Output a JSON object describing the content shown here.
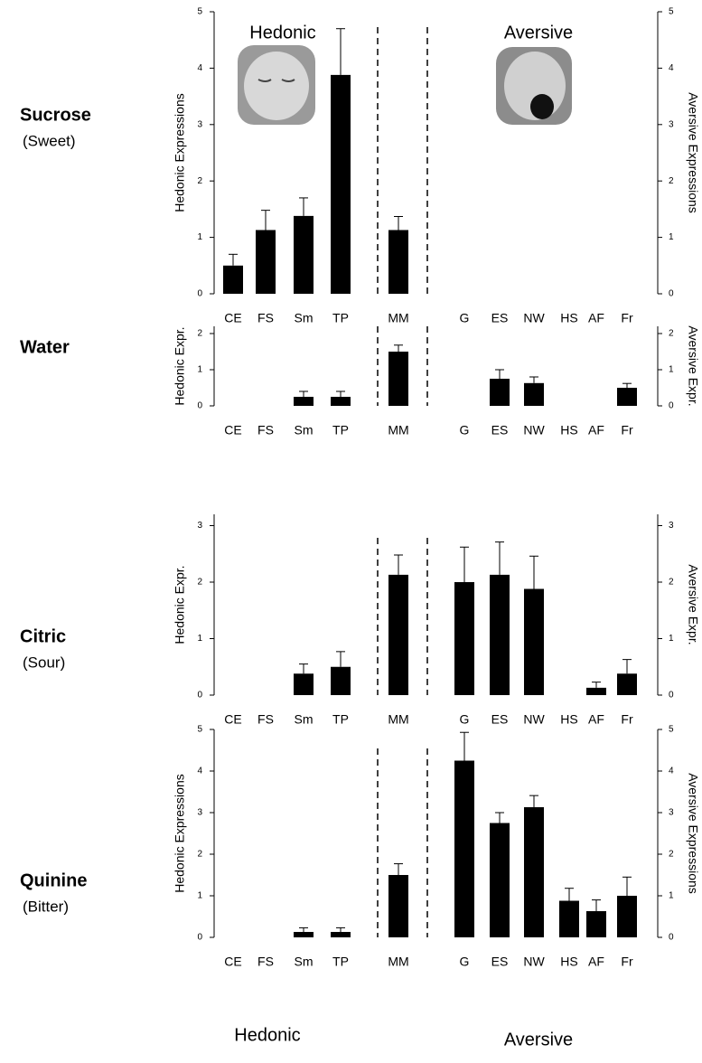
{
  "chart_data": [
    {
      "type": "bar",
      "title": "Sucrose",
      "subtitle": "(Sweet)",
      "ylabel": "Hedonic Expressions",
      "y2label": "Aversive Expressions",
      "annotations": [
        "Hedonic",
        "Aversive"
      ],
      "categories": [
        "CE",
        "FS",
        "Sm",
        "TP",
        "MM",
        "G",
        "ES",
        "NW",
        "HS",
        "AF",
        "Fr"
      ],
      "values": [
        0.5,
        1.13,
        1.38,
        3.88,
        1.13,
        0,
        0,
        0,
        0,
        0,
        0
      ],
      "errors": [
        0.2,
        0.35,
        0.32,
        0.82,
        0.24,
        null,
        null,
        null,
        null,
        null,
        null
      ],
      "color": "#000000",
      "ylim": [
        0,
        5
      ],
      "yticks": [
        0,
        1,
        2,
        3,
        4,
        5
      ],
      "y2lim": [
        0,
        5
      ],
      "y2ticks": [
        0,
        1,
        2,
        3,
        4,
        5
      ]
    },
    {
      "type": "bar",
      "title": "Water",
      "ylabel": "Hedonic Expr.",
      "y2label": "Aversive Expr.",
      "categories": [
        "CE",
        "FS",
        "Sm",
        "TP",
        "MM",
        "G",
        "ES",
        "NW",
        "HS",
        "AF",
        "Fr"
      ],
      "values": [
        0,
        0,
        0.25,
        0.25,
        1.5,
        0,
        0.75,
        0.63,
        0,
        0,
        0.5
      ],
      "errors": [
        null,
        null,
        0.15,
        0.15,
        0.18,
        null,
        0.25,
        0.17,
        null,
        null,
        0.12
      ],
      "color": "#000000",
      "ylim": [
        0,
        2.2
      ],
      "yticks": [
        0,
        1,
        2
      ],
      "y2lim": [
        0,
        2.2
      ],
      "y2ticks": [
        0,
        1,
        2
      ]
    },
    {
      "type": "bar",
      "title": "Citric",
      "subtitle": "(Sour)",
      "ylabel": "Hedonic Expr.",
      "y2label": "Aversive Expr.",
      "categories": [
        "CE",
        "FS",
        "Sm",
        "TP",
        "MM",
        "G",
        "ES",
        "NW",
        "HS",
        "AF",
        "Fr"
      ],
      "values": [
        0,
        0,
        0.38,
        0.5,
        2.13,
        2.0,
        2.13,
        1.88,
        0,
        0.13,
        0.38
      ],
      "errors": [
        null,
        null,
        0.17,
        0.27,
        0.35,
        0.62,
        0.58,
        0.58,
        null,
        0.1,
        0.25
      ],
      "color": "#000000",
      "ylim": [
        0,
        3.2
      ],
      "yticks": [
        0,
        1,
        2,
        3
      ],
      "y2lim": [
        0,
        3.2
      ],
      "y2ticks": [
        0,
        1,
        2,
        3
      ]
    },
    {
      "type": "bar",
      "title": "Quinine",
      "subtitle": "(Bitter)",
      "ylabel": "Hedonic Expressions",
      "y2label": "Aversive Expressions",
      "annotations": [
        "Hedonic",
        "Aversive"
      ],
      "categories": [
        "CE",
        "FS",
        "Sm",
        "TP",
        "MM",
        "G",
        "ES",
        "NW",
        "HS",
        "AF",
        "Fr"
      ],
      "values": [
        0,
        0,
        0.13,
        0.13,
        1.5,
        4.25,
        2.75,
        3.13,
        0.88,
        0.63,
        1.0
      ],
      "errors": [
        null,
        null,
        0.1,
        0.1,
        0.27,
        0.68,
        0.25,
        0.28,
        0.3,
        0.27,
        0.45
      ],
      "color": "#000000",
      "ylim": [
        0,
        5
      ],
      "yticks": [
        0,
        1,
        2,
        3,
        4,
        5
      ],
      "y2lim": [
        0,
        5
      ],
      "y2ticks": [
        0,
        1,
        2,
        3,
        4,
        5
      ]
    }
  ]
}
